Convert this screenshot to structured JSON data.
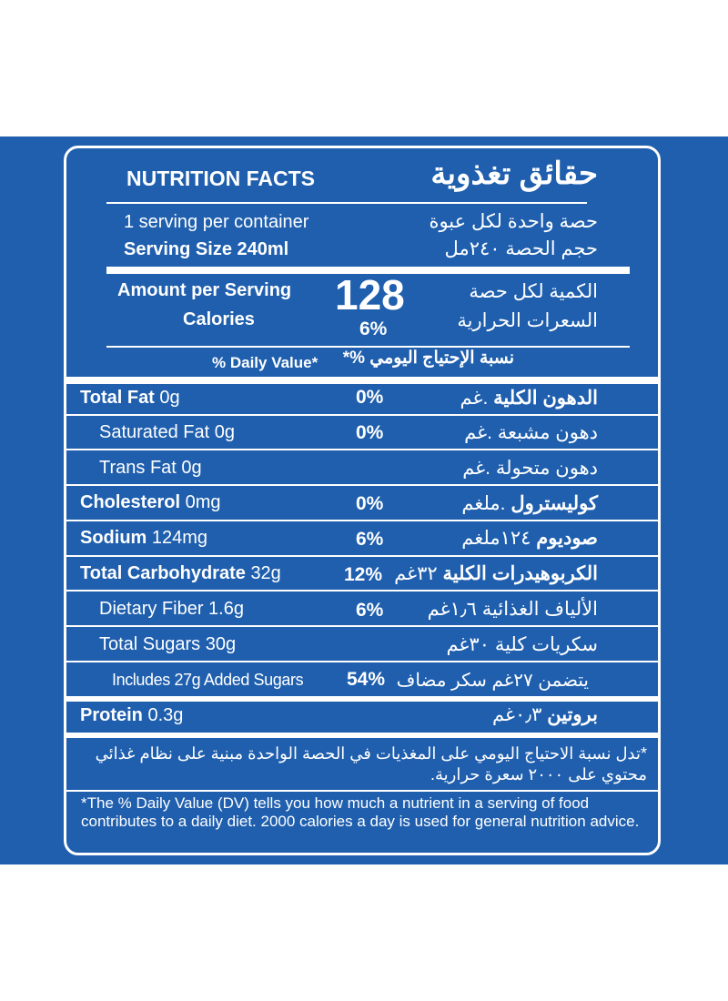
{
  "header": {
    "title_en": "NUTRITION FACTS",
    "title_ar": "حقائق تغذوية"
  },
  "serving": {
    "per_container_en": "1 serving per container",
    "per_container_ar": "حصة واحدة لكل عبوة",
    "size_en": "Serving Size 240ml",
    "size_ar": "حجم الحصة ٢٤٠مل"
  },
  "calories": {
    "amount_label_en": "Amount per Serving",
    "calories_label_en": "Calories",
    "value": "128",
    "percent": "6%",
    "amount_label_ar": "الكمية لكل حصة",
    "calories_label_ar": "السعرات الحرارية"
  },
  "daily_value_header": {
    "en": "% Daily Value*",
    "ar": "نسبة الإحتياج اليومي %*"
  },
  "nutrients": [
    {
      "name_en": "Total Fat",
      "amount_en": "0g",
      "percent": "0%",
      "name_ar": "الدهون الكلية",
      "amount_ar": ".غم"
    },
    {
      "name_en": "Saturated Fat 0g",
      "percent": "0%",
      "label_ar": "دهون مشبعة .غم"
    },
    {
      "name_en": "Trans Fat 0g",
      "label_ar": "دهون متحولة .غم"
    },
    {
      "name_en": "Cholesterol",
      "amount_en": "0mg",
      "percent": "0%",
      "name_ar": "كوليسترول",
      "amount_ar": ".ملغم"
    },
    {
      "name_en": "Sodium",
      "amount_en": "124mg",
      "percent": "6%",
      "name_ar": "صوديوم",
      "amount_ar": "١٢٤ملغم"
    },
    {
      "name_en": "Total Carbohydrate",
      "amount_en": "32g",
      "percent": "12%",
      "name_ar": "الكربوهيدرات الكلية",
      "amount_ar": "٣٢غم"
    },
    {
      "name_en": "Dietary Fiber 1.6g",
      "percent": "6%",
      "label_ar": "الألياف الغذائية ١٫٦غم"
    },
    {
      "name_en": "Total Sugars 30g",
      "label_ar": "سكريات كلية ٣٠غم"
    },
    {
      "name_en": "Includes 27g Added Sugars",
      "percent": "54%",
      "label_ar": "يتضمن ٢٧غم سكر مضاف"
    },
    {
      "name_en": "Protein",
      "amount_en": "0.3g",
      "name_ar": "بروتين",
      "amount_ar": "٠٫٣غم"
    }
  ],
  "footnote": {
    "ar": "*تدل نسبة الاحتياج اليومي على المغذيات في الحصة الواحدة مبنية على نظام غذائي محتوي على ٢٠٠٠ سعرة حرارية.",
    "en": "*The % Daily Value (DV) tells you how much a nutrient in a serving of food contributes to a daily diet. 2000 calories a day is used for general nutrition advice."
  },
  "colors": {
    "band": "#1f5fae",
    "text": "#ffffff"
  }
}
